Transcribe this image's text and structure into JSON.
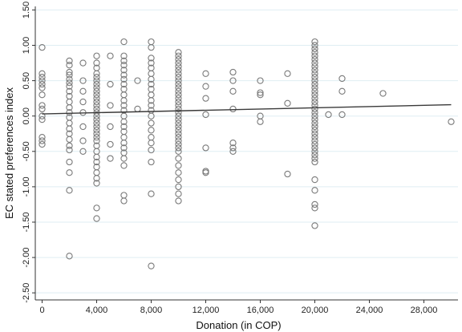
{
  "chart_data": {
    "type": "scatter",
    "xlabel": "Donation (in COP)",
    "ylabel": "EC stated preferences index",
    "xlim": [
      -500,
      30500
    ],
    "ylim": [
      -2.6,
      1.55
    ],
    "x_ticks": [
      0,
      4000,
      8000,
      12000,
      16000,
      20000,
      24000,
      28000
    ],
    "x_tick_labels": [
      "0",
      "4,000",
      "8,000",
      "12,000",
      "16,000",
      "20,000",
      "24,000",
      "28,000"
    ],
    "y_ticks": [
      1.5,
      1.0,
      0.5,
      0.0,
      -0.5,
      -1.0,
      -1.5,
      -2.0,
      -2.5
    ],
    "y_tick_labels": [
      "1.50",
      "1.00",
      "0.50",
      "0.00",
      "-0.50",
      "-1.00",
      "-1.50",
      "-2.00",
      "-2.50"
    ],
    "grid": true,
    "series": [
      {
        "kind": "points",
        "points": [
          [
            0,
            0.97
          ],
          [
            0,
            0.6
          ],
          [
            0,
            0.55
          ],
          [
            0,
            0.5
          ],
          [
            0,
            0.45
          ],
          [
            0,
            0.4
          ],
          [
            0,
            0.3
          ],
          [
            0,
            0.15
          ],
          [
            0,
            0.1
          ],
          [
            0,
            0.0
          ],
          [
            0,
            -0.05
          ],
          [
            0,
            -0.3
          ],
          [
            0,
            -0.35
          ],
          [
            0,
            -0.4
          ],
          [
            2000,
            0.78
          ],
          [
            2000,
            0.72
          ],
          [
            2000,
            0.62
          ],
          [
            2000,
            0.58
          ],
          [
            2000,
            0.52
          ],
          [
            2000,
            0.47
          ],
          [
            2000,
            0.42
          ],
          [
            2000,
            0.35
          ],
          [
            2000,
            0.28
          ],
          [
            2000,
            0.2
          ],
          [
            2000,
            0.12
          ],
          [
            2000,
            0.05
          ],
          [
            2000,
            -0.02
          ],
          [
            2000,
            -0.1
          ],
          [
            2000,
            -0.18
          ],
          [
            2000,
            -0.25
          ],
          [
            2000,
            -0.33
          ],
          [
            2000,
            -0.42
          ],
          [
            2000,
            -0.48
          ],
          [
            2000,
            -0.65
          ],
          [
            2000,
            -0.8
          ],
          [
            2000,
            -1.05
          ],
          [
            2000,
            -1.98
          ],
          [
            3000,
            0.75
          ],
          [
            3000,
            0.5
          ],
          [
            3000,
            0.35
          ],
          [
            3000,
            0.2
          ],
          [
            3000,
            0.05
          ],
          [
            3000,
            -0.15
          ],
          [
            3000,
            -0.35
          ],
          [
            3000,
            -0.5
          ],
          [
            4000,
            0.85
          ],
          [
            4000,
            0.75
          ],
          [
            4000,
            0.68
          ],
          [
            4000,
            0.6
          ],
          [
            4000,
            0.55
          ],
          [
            4000,
            0.5
          ],
          [
            4000,
            0.45
          ],
          [
            4000,
            0.4
          ],
          [
            4000,
            0.35
          ],
          [
            4000,
            0.3
          ],
          [
            4000,
            0.25
          ],
          [
            4000,
            0.2
          ],
          [
            4000,
            0.15
          ],
          [
            4000,
            0.1
          ],
          [
            4000,
            0.05
          ],
          [
            4000,
            0.0
          ],
          [
            4000,
            -0.05
          ],
          [
            4000,
            -0.1
          ],
          [
            4000,
            -0.15
          ],
          [
            4000,
            -0.2
          ],
          [
            4000,
            -0.25
          ],
          [
            4000,
            -0.3
          ],
          [
            4000,
            -0.35
          ],
          [
            4000,
            -0.42
          ],
          [
            4000,
            -0.5
          ],
          [
            4000,
            -0.58
          ],
          [
            4000,
            -0.65
          ],
          [
            4000,
            -0.72
          ],
          [
            4000,
            -0.8
          ],
          [
            4000,
            -0.88
          ],
          [
            4000,
            -0.95
          ],
          [
            4000,
            -1.3
          ],
          [
            4000,
            -1.45
          ],
          [
            5000,
            0.85
          ],
          [
            5000,
            0.45
          ],
          [
            5000,
            0.15
          ],
          [
            5000,
            -0.15
          ],
          [
            5000,
            -0.4
          ],
          [
            5000,
            -0.6
          ],
          [
            6000,
            1.05
          ],
          [
            6000,
            0.85
          ],
          [
            6000,
            0.78
          ],
          [
            6000,
            0.72
          ],
          [
            6000,
            0.65
          ],
          [
            6000,
            0.58
          ],
          [
            6000,
            0.52
          ],
          [
            6000,
            0.45
          ],
          [
            6000,
            0.38
          ],
          [
            6000,
            0.3
          ],
          [
            6000,
            0.22
          ],
          [
            6000,
            0.15
          ],
          [
            6000,
            0.08
          ],
          [
            6000,
            0.0
          ],
          [
            6000,
            -0.08
          ],
          [
            6000,
            -0.15
          ],
          [
            6000,
            -0.22
          ],
          [
            6000,
            -0.3
          ],
          [
            6000,
            -0.38
          ],
          [
            6000,
            -0.45
          ],
          [
            6000,
            -0.52
          ],
          [
            6000,
            -0.6
          ],
          [
            6000,
            -0.7
          ],
          [
            6000,
            -1.12
          ],
          [
            6000,
            -1.2
          ],
          [
            8000,
            1.05
          ],
          [
            8000,
            0.97
          ],
          [
            8000,
            0.82
          ],
          [
            8000,
            0.75
          ],
          [
            8000,
            0.68
          ],
          [
            8000,
            0.6
          ],
          [
            8000,
            0.52
          ],
          [
            8000,
            0.45
          ],
          [
            8000,
            0.38
          ],
          [
            8000,
            0.3
          ],
          [
            8000,
            0.22
          ],
          [
            8000,
            0.15
          ],
          [
            8000,
            0.08
          ],
          [
            8000,
            0.0
          ],
          [
            8000,
            -0.1
          ],
          [
            8000,
            -0.2
          ],
          [
            8000,
            -0.3
          ],
          [
            8000,
            -0.38
          ],
          [
            8000,
            -0.48
          ],
          [
            8000,
            -0.65
          ],
          [
            8000,
            -1.1
          ],
          [
            8000,
            -2.12
          ],
          [
            7000,
            0.5
          ],
          [
            7000,
            0.1
          ],
          [
            10000,
            0.9
          ],
          [
            10000,
            0.85
          ],
          [
            10000,
            0.8
          ],
          [
            10000,
            0.75
          ],
          [
            10000,
            0.7
          ],
          [
            10000,
            0.65
          ],
          [
            10000,
            0.6
          ],
          [
            10000,
            0.55
          ],
          [
            10000,
            0.5
          ],
          [
            10000,
            0.45
          ],
          [
            10000,
            0.4
          ],
          [
            10000,
            0.35
          ],
          [
            10000,
            0.3
          ],
          [
            10000,
            0.25
          ],
          [
            10000,
            0.2
          ],
          [
            10000,
            0.15
          ],
          [
            10000,
            0.1
          ],
          [
            10000,
            0.05
          ],
          [
            10000,
            0.0
          ],
          [
            10000,
            -0.05
          ],
          [
            10000,
            -0.1
          ],
          [
            10000,
            -0.15
          ],
          [
            10000,
            -0.2
          ],
          [
            10000,
            -0.25
          ],
          [
            10000,
            -0.3
          ],
          [
            10000,
            -0.35
          ],
          [
            10000,
            -0.4
          ],
          [
            10000,
            -0.45
          ],
          [
            10000,
            -0.5
          ],
          [
            10000,
            -0.6
          ],
          [
            10000,
            -0.7
          ],
          [
            10000,
            -0.8
          ],
          [
            10000,
            -0.9
          ],
          [
            10000,
            -1.0
          ],
          [
            10000,
            -1.1
          ],
          [
            10000,
            -1.2
          ],
          [
            12000,
            0.6
          ],
          [
            12000,
            0.42
          ],
          [
            12000,
            0.25
          ],
          [
            12000,
            0.02
          ],
          [
            12000,
            -0.45
          ],
          [
            12000,
            -0.78
          ],
          [
            12000,
            -0.8
          ],
          [
            14000,
            0.62
          ],
          [
            14000,
            0.5
          ],
          [
            14000,
            0.35
          ],
          [
            14000,
            0.1
          ],
          [
            14000,
            -0.38
          ],
          [
            14000,
            -0.45
          ],
          [
            14000,
            -0.5
          ],
          [
            16000,
            0.5
          ],
          [
            16000,
            0.33
          ],
          [
            16000,
            0.3
          ],
          [
            16000,
            0.0
          ],
          [
            16000,
            -0.08
          ],
          [
            18000,
            0.6
          ],
          [
            18000,
            0.18
          ],
          [
            18000,
            -0.82
          ],
          [
            20000,
            1.05
          ],
          [
            20000,
            1.0
          ],
          [
            20000,
            0.95
          ],
          [
            20000,
            0.9
          ],
          [
            20000,
            0.85
          ],
          [
            20000,
            0.8
          ],
          [
            20000,
            0.75
          ],
          [
            20000,
            0.7
          ],
          [
            20000,
            0.65
          ],
          [
            20000,
            0.6
          ],
          [
            20000,
            0.55
          ],
          [
            20000,
            0.5
          ],
          [
            20000,
            0.45
          ],
          [
            20000,
            0.4
          ],
          [
            20000,
            0.35
          ],
          [
            20000,
            0.3
          ],
          [
            20000,
            0.25
          ],
          [
            20000,
            0.2
          ],
          [
            20000,
            0.15
          ],
          [
            20000,
            0.1
          ],
          [
            20000,
            0.05
          ],
          [
            20000,
            0.0
          ],
          [
            20000,
            -0.05
          ],
          [
            20000,
            -0.1
          ],
          [
            20000,
            -0.15
          ],
          [
            20000,
            -0.2
          ],
          [
            20000,
            -0.25
          ],
          [
            20000,
            -0.3
          ],
          [
            20000,
            -0.35
          ],
          [
            20000,
            -0.4
          ],
          [
            20000,
            -0.45
          ],
          [
            20000,
            -0.5
          ],
          [
            20000,
            -0.55
          ],
          [
            20000,
            -0.6
          ],
          [
            20000,
            -0.65
          ],
          [
            20000,
            -0.9
          ],
          [
            20000,
            -1.05
          ],
          [
            20000,
            -1.25
          ],
          [
            20000,
            -1.3
          ],
          [
            20000,
            -1.55
          ],
          [
            21000,
            0.02
          ],
          [
            22000,
            0.53
          ],
          [
            22000,
            0.35
          ],
          [
            22000,
            0.02
          ],
          [
            25000,
            0.32
          ],
          [
            30000,
            -0.08
          ]
        ]
      },
      {
        "kind": "fit-line",
        "x": [
          0,
          30000
        ],
        "y": [
          0.03,
          0.16
        ]
      }
    ]
  }
}
